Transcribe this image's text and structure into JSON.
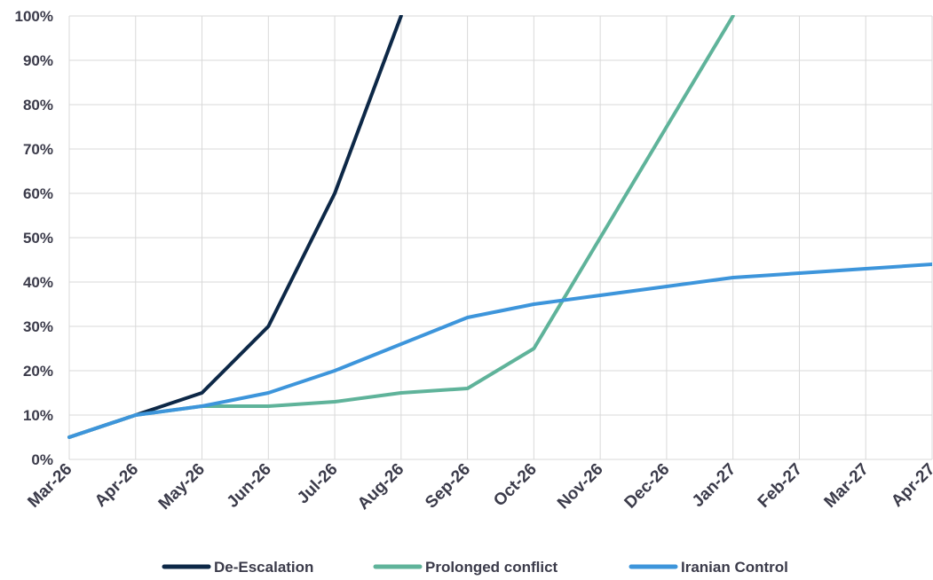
{
  "chart_data": {
    "type": "line",
    "x": [
      "Mar-26",
      "Apr-26",
      "May-26",
      "Jun-26",
      "Jul-26",
      "Aug-26",
      "Sep-26",
      "Oct-26",
      "Nov-26",
      "Dec-26",
      "Jan-27",
      "Feb-27",
      "Mar-27",
      "Apr-27"
    ],
    "y_ticks": [
      "0%",
      "10%",
      "20%",
      "30%",
      "40%",
      "50%",
      "60%",
      "70%",
      "80%",
      "90%",
      "100%"
    ],
    "ylim": [
      0,
      100
    ],
    "grid": true,
    "legend_position": "bottom",
    "series": [
      {
        "name": "De-Escalation",
        "color": "#0d2847",
        "values": [
          5,
          10,
          15,
          30,
          60,
          100,
          null,
          null,
          null,
          null,
          null,
          null,
          null,
          null
        ]
      },
      {
        "name": "Prolonged conflict",
        "color": "#5fb39a",
        "values": [
          5,
          10,
          12,
          12,
          13,
          15,
          16,
          25,
          50,
          75,
          100,
          null,
          null,
          null
        ]
      },
      {
        "name": "Iranian Control",
        "color": "#3d95db",
        "values": [
          5,
          10,
          12,
          15,
          20,
          26,
          32,
          35,
          37,
          39,
          41,
          42,
          43,
          44
        ]
      }
    ]
  }
}
